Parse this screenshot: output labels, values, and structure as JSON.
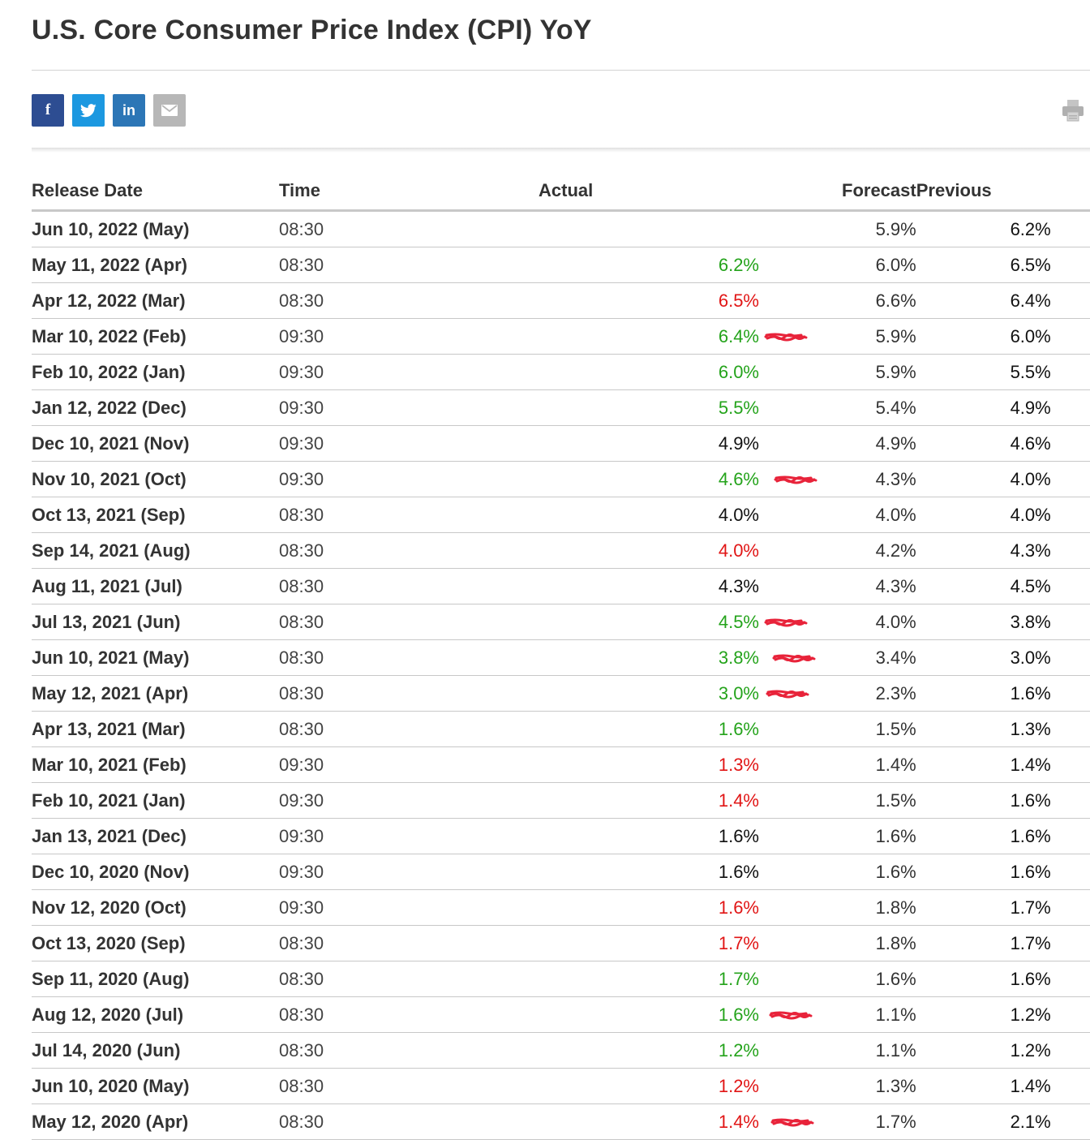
{
  "title": "U.S. Core Consumer Price Index (CPI) YoY",
  "share": {
    "facebook": "f",
    "twitter": "twitter-bird-icon",
    "linkedin": "in",
    "email": "envelope-icon"
  },
  "print_icon": "printer-icon",
  "colors": {
    "beat": "#24a31b",
    "miss": "#e11515",
    "neutral": "#111111",
    "scribble": "#e8233a"
  },
  "columns": {
    "date": "Release Date",
    "time": "Time",
    "actual": "Actual",
    "forecast": "Forecast",
    "previous": "Previous"
  },
  "rows": [
    {
      "date": "Jun 10, 2022 (May)",
      "time": "08:30",
      "actual": "",
      "status": "neutral",
      "mark": false,
      "forecast": "5.9%",
      "previous": "6.2%"
    },
    {
      "date": "May 11, 2022 (Apr)",
      "time": "08:30",
      "actual": "6.2%",
      "status": "green",
      "mark": false,
      "forecast": "6.0%",
      "previous": "6.5%"
    },
    {
      "date": "Apr 12, 2022 (Mar)",
      "time": "08:30",
      "actual": "6.5%",
      "status": "red",
      "mark": false,
      "forecast": "6.6%",
      "previous": "6.4%"
    },
    {
      "date": "Mar 10, 2022 (Feb)",
      "time": "09:30",
      "actual": "6.4%",
      "status": "green",
      "mark": true,
      "forecast": "5.9%",
      "previous": "6.0%"
    },
    {
      "date": "Feb 10, 2022 (Jan)",
      "time": "09:30",
      "actual": "6.0%",
      "status": "green",
      "mark": false,
      "forecast": "5.9%",
      "previous": "5.5%"
    },
    {
      "date": "Jan 12, 2022 (Dec)",
      "time": "09:30",
      "actual": "5.5%",
      "status": "green",
      "mark": false,
      "forecast": "5.4%",
      "previous": "4.9%"
    },
    {
      "date": "Dec 10, 2021 (Nov)",
      "time": "09:30",
      "actual": "4.9%",
      "status": "neutral",
      "mark": false,
      "forecast": "4.9%",
      "previous": "4.6%"
    },
    {
      "date": "Nov 10, 2021 (Oct)",
      "time": "09:30",
      "actual": "4.6%",
      "status": "green",
      "mark": true,
      "forecast": "4.3%",
      "previous": "4.0%"
    },
    {
      "date": "Oct 13, 2021 (Sep)",
      "time": "08:30",
      "actual": "4.0%",
      "status": "neutral",
      "mark": false,
      "forecast": "4.0%",
      "previous": "4.0%"
    },
    {
      "date": "Sep 14, 2021 (Aug)",
      "time": "08:30",
      "actual": "4.0%",
      "status": "red",
      "mark": false,
      "forecast": "4.2%",
      "previous": "4.3%"
    },
    {
      "date": "Aug 11, 2021 (Jul)",
      "time": "08:30",
      "actual": "4.3%",
      "status": "neutral",
      "mark": false,
      "forecast": "4.3%",
      "previous": "4.5%"
    },
    {
      "date": "Jul 13, 2021 (Jun)",
      "time": "08:30",
      "actual": "4.5%",
      "status": "green",
      "mark": true,
      "forecast": "4.0%",
      "previous": "3.8%"
    },
    {
      "date": "Jun 10, 2021 (May)",
      "time": "08:30",
      "actual": "3.8%",
      "status": "green",
      "mark": true,
      "forecast": "3.4%",
      "previous": "3.0%"
    },
    {
      "date": "May 12, 2021 (Apr)",
      "time": "08:30",
      "actual": "3.0%",
      "status": "green",
      "mark": true,
      "forecast": "2.3%",
      "previous": "1.6%"
    },
    {
      "date": "Apr 13, 2021 (Mar)",
      "time": "08:30",
      "actual": "1.6%",
      "status": "green",
      "mark": false,
      "forecast": "1.5%",
      "previous": "1.3%"
    },
    {
      "date": "Mar 10, 2021 (Feb)",
      "time": "09:30",
      "actual": "1.3%",
      "status": "red",
      "mark": false,
      "forecast": "1.4%",
      "previous": "1.4%"
    },
    {
      "date": "Feb 10, 2021 (Jan)",
      "time": "09:30",
      "actual": "1.4%",
      "status": "red",
      "mark": false,
      "forecast": "1.5%",
      "previous": "1.6%"
    },
    {
      "date": "Jan 13, 2021 (Dec)",
      "time": "09:30",
      "actual": "1.6%",
      "status": "neutral",
      "mark": false,
      "forecast": "1.6%",
      "previous": "1.6%"
    },
    {
      "date": "Dec 10, 2020 (Nov)",
      "time": "09:30",
      "actual": "1.6%",
      "status": "neutral",
      "mark": false,
      "forecast": "1.6%",
      "previous": "1.6%"
    },
    {
      "date": "Nov 12, 2020 (Oct)",
      "time": "09:30",
      "actual": "1.6%",
      "status": "red",
      "mark": false,
      "forecast": "1.8%",
      "previous": "1.7%"
    },
    {
      "date": "Oct 13, 2020 (Sep)",
      "time": "08:30",
      "actual": "1.7%",
      "status": "red",
      "mark": false,
      "forecast": "1.8%",
      "previous": "1.7%"
    },
    {
      "date": "Sep 11, 2020 (Aug)",
      "time": "08:30",
      "actual": "1.7%",
      "status": "green",
      "mark": false,
      "forecast": "1.6%",
      "previous": "1.6%"
    },
    {
      "date": "Aug 12, 2020 (Jul)",
      "time": "08:30",
      "actual": "1.6%",
      "status": "green",
      "mark": true,
      "forecast": "1.1%",
      "previous": "1.2%"
    },
    {
      "date": "Jul 14, 2020 (Jun)",
      "time": "08:30",
      "actual": "1.2%",
      "status": "green",
      "mark": false,
      "forecast": "1.1%",
      "previous": "1.2%"
    },
    {
      "date": "Jun 10, 2020 (May)",
      "time": "08:30",
      "actual": "1.2%",
      "status": "red",
      "mark": false,
      "forecast": "1.3%",
      "previous": "1.4%"
    },
    {
      "date": "May 12, 2020 (Apr)",
      "time": "08:30",
      "actual": "1.4%",
      "status": "red",
      "mark": true,
      "forecast": "1.7%",
      "previous": "2.1%"
    }
  ]
}
